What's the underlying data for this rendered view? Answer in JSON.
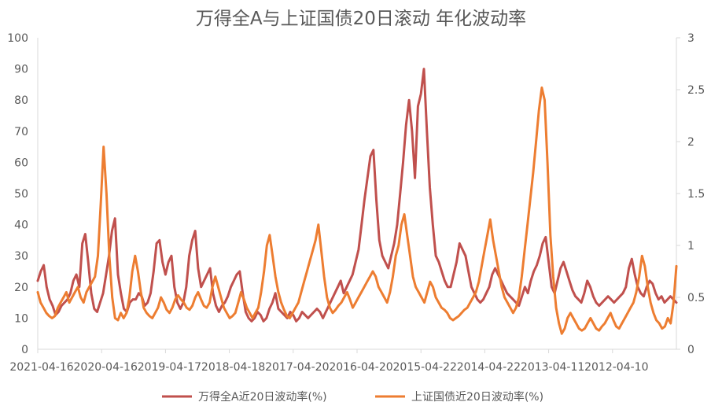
{
  "chart_data": {
    "type": "line",
    "title": "万得全A与上证国债20日滚动 年化波动率",
    "x_tick_labels": [
      "2021-04-16",
      "2020-04-16",
      "2019-04-17",
      "2018-04-18",
      "2017-04-20",
      "2016-04-20",
      "2015-04-22",
      "2014-04-22",
      "2013-04-11",
      "2012-04-10"
    ],
    "x_axis_reversed": true,
    "y_left": {
      "min": 0,
      "max": 100,
      "step": 10,
      "ticks": [
        "0",
        "10",
        "20",
        "30",
        "40",
        "50",
        "60",
        "70",
        "80",
        "90",
        "100"
      ]
    },
    "y_right": {
      "min": 0,
      "max": 3,
      "step": 0.5,
      "ticks": [
        "0",
        "0.5",
        "1",
        "1.5",
        "2",
        "2.5",
        "3"
      ]
    },
    "grid": false,
    "legend_position": "bottom",
    "colors": {
      "wind_a": "#C0504D",
      "treasury": "#ED7D31",
      "axis": "#D9D9D9",
      "text": "#595959"
    },
    "series": [
      {
        "name": "万得全A近20日波动率(%)",
        "axis": "left",
        "color": "#C0504D",
        "values": [
          22,
          25,
          27,
          20,
          16,
          14,
          11,
          12,
          14,
          15,
          16,
          18,
          22,
          24,
          20,
          34,
          37,
          28,
          18,
          13,
          12,
          15,
          18,
          24,
          30,
          38,
          42,
          24,
          18,
          13,
          12,
          15,
          16,
          16,
          18,
          17,
          14,
          15,
          18,
          25,
          34,
          35,
          28,
          24,
          28,
          30,
          20,
          15,
          13,
          15,
          20,
          30,
          35,
          38,
          26,
          20,
          22,
          24,
          26,
          18,
          14,
          12,
          14,
          15,
          17,
          20,
          22,
          24,
          25,
          18,
          12,
          10,
          9,
          10,
          12,
          11,
          9,
          10,
          13,
          15,
          18,
          13,
          12,
          11,
          10,
          12,
          11,
          9,
          10,
          12,
          11,
          10,
          11,
          12,
          13,
          12,
          10,
          12,
          14,
          16,
          18,
          20,
          22,
          18,
          20,
          22,
          24,
          28,
          32,
          40,
          48,
          55,
          62,
          64,
          48,
          35,
          30,
          28,
          26,
          30,
          34,
          40,
          50,
          60,
          72,
          80,
          70,
          55,
          78,
          82,
          90,
          70,
          52,
          40,
          30,
          28,
          25,
          22,
          20,
          20,
          24,
          28,
          34,
          32,
          30,
          25,
          20,
          18,
          16,
          15,
          16,
          18,
          20,
          24,
          26,
          24,
          22,
          20,
          18,
          17,
          16,
          15,
          14,
          17,
          20,
          18,
          22,
          25,
          27,
          30,
          34,
          36,
          28,
          20,
          18,
          22,
          26,
          28,
          25,
          22,
          19,
          17,
          16,
          15,
          18,
          22,
          20,
          17,
          15,
          14,
          15,
          16,
          17,
          16,
          15,
          16,
          17,
          18,
          20,
          26,
          29,
          24,
          20,
          18,
          17,
          20,
          22,
          21,
          18,
          16,
          17,
          15,
          16,
          17,
          16,
          15
        ]
      },
      {
        "name": "上证国债近20日波动率(%)",
        "axis": "right",
        "color": "#ED7D31",
        "values": [
          0.55,
          0.45,
          0.4,
          0.35,
          0.32,
          0.3,
          0.32,
          0.4,
          0.45,
          0.5,
          0.55,
          0.45,
          0.5,
          0.55,
          0.6,
          0.5,
          0.45,
          0.55,
          0.6,
          0.65,
          0.7,
          0.9,
          1.4,
          1.95,
          1.5,
          0.9,
          0.5,
          0.3,
          0.28,
          0.35,
          0.3,
          0.35,
          0.5,
          0.75,
          0.9,
          0.75,
          0.55,
          0.4,
          0.35,
          0.32,
          0.3,
          0.35,
          0.4,
          0.5,
          0.45,
          0.38,
          0.35,
          0.4,
          0.48,
          0.52,
          0.48,
          0.45,
          0.4,
          0.38,
          0.42,
          0.5,
          0.55,
          0.48,
          0.42,
          0.4,
          0.45,
          0.6,
          0.7,
          0.6,
          0.5,
          0.4,
          0.35,
          0.3,
          0.32,
          0.35,
          0.45,
          0.55,
          0.48,
          0.4,
          0.35,
          0.3,
          0.35,
          0.4,
          0.55,
          0.75,
          1.0,
          1.1,
          0.9,
          0.7,
          0.55,
          0.45,
          0.38,
          0.32,
          0.3,
          0.35,
          0.4,
          0.45,
          0.55,
          0.65,
          0.75,
          0.85,
          0.95,
          1.05,
          1.2,
          0.95,
          0.7,
          0.5,
          0.4,
          0.35,
          0.38,
          0.42,
          0.45,
          0.5,
          0.55,
          0.48,
          0.4,
          0.45,
          0.5,
          0.55,
          0.6,
          0.65,
          0.7,
          0.75,
          0.7,
          0.6,
          0.55,
          0.5,
          0.45,
          0.55,
          0.7,
          0.9,
          1.0,
          1.2,
          1.3,
          1.1,
          0.9,
          0.7,
          0.6,
          0.55,
          0.5,
          0.45,
          0.55,
          0.65,
          0.6,
          0.5,
          0.45,
          0.4,
          0.38,
          0.35,
          0.3,
          0.28,
          0.3,
          0.32,
          0.35,
          0.38,
          0.4,
          0.45,
          0.5,
          0.55,
          0.65,
          0.8,
          0.95,
          1.1,
          1.25,
          1.05,
          0.9,
          0.75,
          0.6,
          0.5,
          0.45,
          0.4,
          0.35,
          0.4,
          0.5,
          0.7,
          0.95,
          1.2,
          1.45,
          1.7,
          2.0,
          2.3,
          2.52,
          2.4,
          1.8,
          1.1,
          0.7,
          0.4,
          0.25,
          0.15,
          0.2,
          0.3,
          0.35,
          0.3,
          0.25,
          0.2,
          0.18,
          0.2,
          0.25,
          0.3,
          0.25,
          0.2,
          0.18,
          0.22,
          0.25,
          0.3,
          0.35,
          0.28,
          0.22,
          0.2,
          0.25,
          0.3,
          0.35,
          0.4,
          0.45,
          0.55,
          0.7,
          0.9,
          0.8,
          0.6,
          0.45,
          0.35,
          0.28,
          0.25,
          0.2,
          0.22,
          0.3,
          0.25,
          0.45,
          0.8
        ]
      }
    ]
  }
}
